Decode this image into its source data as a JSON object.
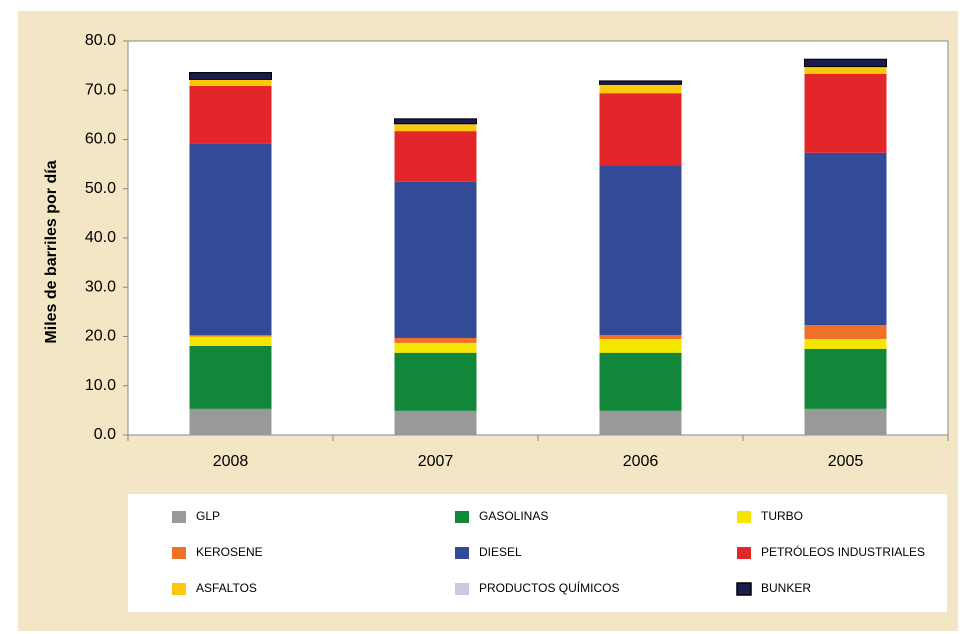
{
  "chart_data": {
    "type": "stacked-bar",
    "y_label": "Miles de barriles por día",
    "categories": [
      "2008",
      "2007",
      "2006",
      "2005"
    ],
    "series": [
      {
        "name": "GLP",
        "color": "#999999",
        "values": [
          5.3,
          4.9,
          4.9,
          5.3
        ]
      },
      {
        "name": "GASOLINAS",
        "color": "#12873a",
        "values": [
          12.8,
          11.8,
          11.8,
          12.2
        ]
      },
      {
        "name": "TURBO",
        "color": "#f5e600",
        "values": [
          1.9,
          2.0,
          2.8,
          2.0
        ]
      },
      {
        "name": "KEROSENE",
        "color": "#ee7127",
        "values": [
          0.3,
          1.0,
          0.8,
          2.8
        ]
      },
      {
        "name": "DIESEL",
        "color": "#334b97",
        "values": [
          38.8,
          31.7,
          34.5,
          35.0
        ]
      },
      {
        "name": "PETRÓLEOS INDUSTRIALES",
        "color": "#e3262a",
        "values": [
          11.8,
          10.3,
          14.6,
          16.0
        ]
      },
      {
        "name": "ASFALTOS",
        "color": "#fcc80c",
        "values": [
          1.2,
          1.4,
          1.7,
          1.4
        ]
      },
      {
        "name": "PRODUCTOS QUÍMICOS",
        "color": "#c9c9e4",
        "values": [
          0.1,
          0.1,
          0.1,
          0.1
        ]
      },
      {
        "name": "BUNKER",
        "color": "#1b1c4e",
        "values": [
          1.4,
          1.0,
          0.7,
          1.5
        ]
      }
    ],
    "ylim": [
      0,
      80
    ],
    "yticks": [
      {
        "value": 0,
        "label": "0.0"
      },
      {
        "value": 10,
        "label": "10.0"
      },
      {
        "value": 20,
        "label": "20.0"
      },
      {
        "value": 30,
        "label": "30.0"
      },
      {
        "value": 40,
        "label": "40.0"
      },
      {
        "value": 50,
        "label": "50.0"
      },
      {
        "value": 60,
        "label": "60.0"
      },
      {
        "value": 70,
        "label": "70.0"
      },
      {
        "value": 80,
        "label": "80.0"
      }
    ],
    "grid": false
  }
}
